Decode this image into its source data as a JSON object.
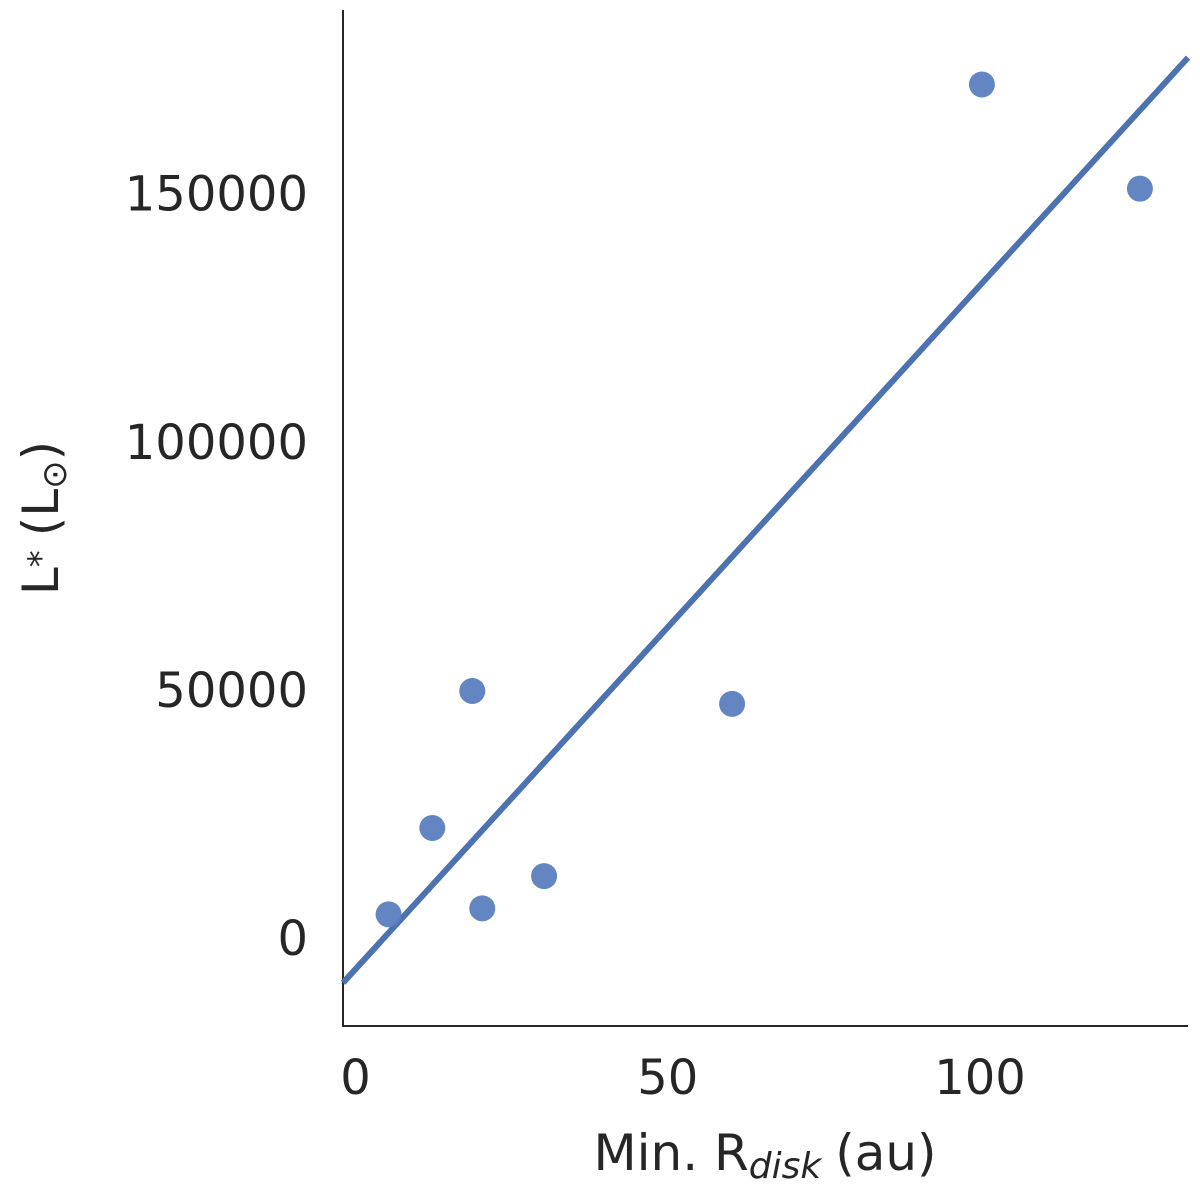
{
  "chart_data": {
    "type": "scatter",
    "xlabel": [
      "Min. R",
      "disk",
      "(au)"
    ],
    "ylabel": [
      "L",
      "*",
      "(L",
      "⊙",
      ")"
    ],
    "x": [
      5.3,
      12.3,
      18.7,
      20.3,
      30.2,
      60.3,
      100.3,
      125.6
    ],
    "y": [
      4800,
      22200,
      49800,
      6000,
      12500,
      47200,
      172000,
      151000
    ],
    "color": "#5b7fbf",
    "fit": {
      "x": [
        -2,
        133.3
      ],
      "y": [
        -9000,
        177400
      ],
      "color": "#4c72b0"
    },
    "xlim": [
      -2,
      133.3
    ],
    "ylim": [
      -17700,
      187000
    ],
    "xticks": [
      0,
      50,
      100
    ],
    "yticks": [
      0,
      50000,
      100000,
      150000
    ],
    "grid": false
  }
}
